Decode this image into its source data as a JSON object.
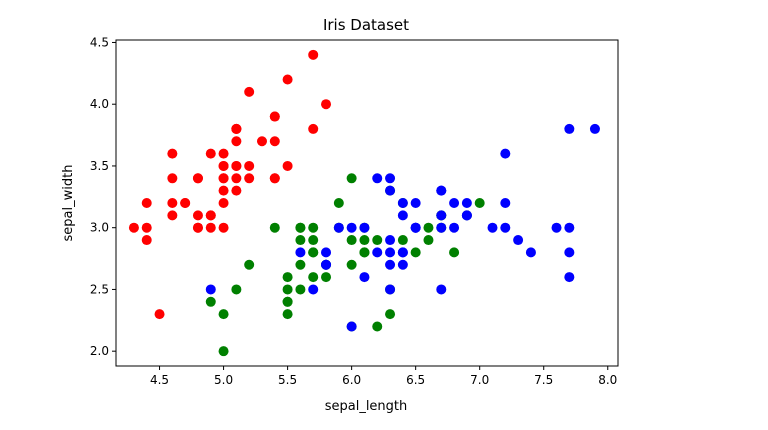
{
  "chart_data": {
    "type": "scatter",
    "title": "Iris Dataset",
    "xlabel": "sepal_length",
    "ylabel": "sepal_width",
    "xlim": [
      4.16,
      8.08
    ],
    "ylim": [
      1.88,
      4.52
    ],
    "xticks": [
      "4.5",
      "5.0",
      "5.5",
      "6.0",
      "6.5",
      "7.0",
      "7.5",
      "8.0"
    ],
    "yticks": [
      "2.0",
      "2.5",
      "3.0",
      "3.5",
      "4.0",
      "4.5"
    ],
    "grid": false,
    "legend": "none",
    "series": [
      {
        "color": "#ff0000",
        "points": [
          [
            5.1,
            3.5
          ],
          [
            4.9,
            3.0
          ],
          [
            4.7,
            3.2
          ],
          [
            4.6,
            3.1
          ],
          [
            5.0,
            3.6
          ],
          [
            5.4,
            3.9
          ],
          [
            4.6,
            3.4
          ],
          [
            5.0,
            3.4
          ],
          [
            4.4,
            2.9
          ],
          [
            4.9,
            3.1
          ],
          [
            5.4,
            3.7
          ],
          [
            4.8,
            3.4
          ],
          [
            4.8,
            3.0
          ],
          [
            4.3,
            3.0
          ],
          [
            5.8,
            4.0
          ],
          [
            5.7,
            4.4
          ],
          [
            5.4,
            3.9
          ],
          [
            5.1,
            3.5
          ],
          [
            5.7,
            3.8
          ],
          [
            5.1,
            3.8
          ],
          [
            5.4,
            3.4
          ],
          [
            5.1,
            3.7
          ],
          [
            4.6,
            3.6
          ],
          [
            5.1,
            3.3
          ],
          [
            4.8,
            3.4
          ],
          [
            5.0,
            3.0
          ],
          [
            5.0,
            3.4
          ],
          [
            5.2,
            3.5
          ],
          [
            5.2,
            3.4
          ],
          [
            4.7,
            3.2
          ],
          [
            4.8,
            3.1
          ],
          [
            5.4,
            3.4
          ],
          [
            5.2,
            4.1
          ],
          [
            5.5,
            4.2
          ],
          [
            4.9,
            3.1
          ],
          [
            5.0,
            3.2
          ],
          [
            5.5,
            3.5
          ],
          [
            4.9,
            3.6
          ],
          [
            4.4,
            3.0
          ],
          [
            5.1,
            3.4
          ],
          [
            5.0,
            3.5
          ],
          [
            4.5,
            2.3
          ],
          [
            4.4,
            3.2
          ],
          [
            5.0,
            3.5
          ],
          [
            5.1,
            3.8
          ],
          [
            4.8,
            3.0
          ],
          [
            5.1,
            3.8
          ],
          [
            4.6,
            3.2
          ],
          [
            5.3,
            3.7
          ],
          [
            5.0,
            3.3
          ]
        ]
      },
      {
        "color": "#008000",
        "points": [
          [
            7.0,
            3.2
          ],
          [
            6.4,
            3.2
          ],
          [
            6.9,
            3.1
          ],
          [
            5.5,
            2.3
          ],
          [
            6.5,
            2.8
          ],
          [
            5.7,
            2.8
          ],
          [
            6.3,
            3.3
          ],
          [
            4.9,
            2.4
          ],
          [
            6.6,
            2.9
          ],
          [
            5.2,
            2.7
          ],
          [
            5.0,
            2.0
          ],
          [
            5.9,
            3.0
          ],
          [
            6.0,
            2.2
          ],
          [
            6.1,
            2.9
          ],
          [
            5.6,
            2.9
          ],
          [
            6.7,
            3.1
          ],
          [
            5.6,
            3.0
          ],
          [
            5.8,
            2.7
          ],
          [
            6.2,
            2.2
          ],
          [
            5.6,
            2.5
          ],
          [
            5.9,
            3.2
          ],
          [
            6.1,
            2.8
          ],
          [
            6.3,
            2.5
          ],
          [
            6.1,
            2.8
          ],
          [
            6.4,
            2.9
          ],
          [
            6.6,
            3.0
          ],
          [
            6.8,
            2.8
          ],
          [
            6.7,
            3.0
          ],
          [
            6.0,
            2.9
          ],
          [
            5.7,
            2.6
          ],
          [
            5.5,
            2.4
          ],
          [
            5.5,
            2.4
          ],
          [
            5.8,
            2.7
          ],
          [
            6.0,
            2.7
          ],
          [
            5.4,
            3.0
          ],
          [
            6.0,
            3.4
          ],
          [
            6.7,
            3.1
          ],
          [
            6.3,
            2.3
          ],
          [
            5.6,
            3.0
          ],
          [
            5.5,
            2.5
          ],
          [
            5.5,
            2.6
          ],
          [
            6.1,
            3.0
          ],
          [
            5.8,
            2.6
          ],
          [
            5.0,
            2.3
          ],
          [
            5.6,
            2.7
          ],
          [
            5.7,
            3.0
          ],
          [
            5.7,
            2.9
          ],
          [
            6.2,
            2.9
          ],
          [
            5.1,
            2.5
          ],
          [
            5.7,
            2.8
          ]
        ]
      },
      {
        "color": "#0000ff",
        "points": [
          [
            6.3,
            3.3
          ],
          [
            5.8,
            2.7
          ],
          [
            7.1,
            3.0
          ],
          [
            6.3,
            2.9
          ],
          [
            6.5,
            3.0
          ],
          [
            7.6,
            3.0
          ],
          [
            4.9,
            2.5
          ],
          [
            7.3,
            2.9
          ],
          [
            6.7,
            2.5
          ],
          [
            7.2,
            3.6
          ],
          [
            6.5,
            3.2
          ],
          [
            6.4,
            2.7
          ],
          [
            6.8,
            3.0
          ],
          [
            5.7,
            2.5
          ],
          [
            5.8,
            2.8
          ],
          [
            6.4,
            3.2
          ],
          [
            6.5,
            3.0
          ],
          [
            7.7,
            3.8
          ],
          [
            7.7,
            2.6
          ],
          [
            6.0,
            2.2
          ],
          [
            6.9,
            3.2
          ],
          [
            5.6,
            2.8
          ],
          [
            7.7,
            2.8
          ],
          [
            6.3,
            2.7
          ],
          [
            6.7,
            3.3
          ],
          [
            7.2,
            3.2
          ],
          [
            6.2,
            2.8
          ],
          [
            6.1,
            3.0
          ],
          [
            6.4,
            2.8
          ],
          [
            7.2,
            3.0
          ],
          [
            7.4,
            2.8
          ],
          [
            7.9,
            3.8
          ],
          [
            6.4,
            2.8
          ],
          [
            6.3,
            2.8
          ],
          [
            6.1,
            2.6
          ],
          [
            7.7,
            3.0
          ],
          [
            6.3,
            3.4
          ],
          [
            6.4,
            3.1
          ],
          [
            6.0,
            3.0
          ],
          [
            6.9,
            3.1
          ],
          [
            6.7,
            3.1
          ],
          [
            6.9,
            3.1
          ],
          [
            5.8,
            2.7
          ],
          [
            6.8,
            3.2
          ],
          [
            6.7,
            3.3
          ],
          [
            6.7,
            3.0
          ],
          [
            6.3,
            2.5
          ],
          [
            6.5,
            3.0
          ],
          [
            6.2,
            3.4
          ],
          [
            5.9,
            3.0
          ]
        ]
      }
    ]
  }
}
